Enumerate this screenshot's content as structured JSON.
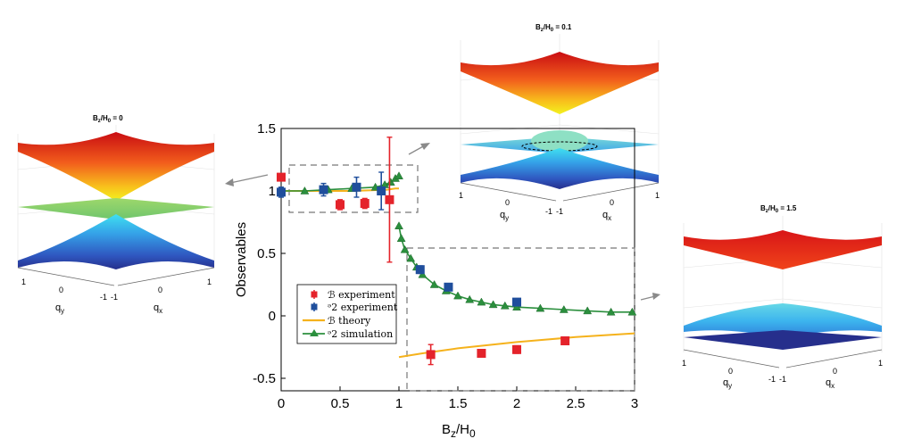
{
  "chart_data": {
    "type": "scatter",
    "xlabel": "B",
    "xlabel_sub1": "z",
    "xlabel_mid": "/H",
    "xlabel_sub2": "0",
    "ylabel": "Observables",
    "xlim": [
      0,
      3
    ],
    "ylim": [
      -0.6,
      1.5
    ],
    "x_ticks": [
      "0",
      "0.5",
      "1",
      "1.5",
      "2",
      "2.5",
      "3"
    ],
    "y_ticks": [
      "1.5",
      "1",
      "0.5",
      "0",
      "-0.5"
    ],
    "legend": [
      "ℬ experiment",
      "ᵊ2 experiment",
      "ℬ theory",
      "ᵊ2 simulation"
    ],
    "legend_position": "lower-left",
    "series": [
      {
        "name": "ℬ experiment",
        "color": "#e4232b",
        "marker": "square",
        "points": [
          [
            0,
            1.11,
            0.02
          ],
          [
            0.5,
            0.89,
            0.04
          ],
          [
            0.71,
            0.9,
            0.04
          ],
          [
            0.92,
            0.93,
            0.5
          ],
          [
            1.27,
            -0.31,
            0.08
          ],
          [
            1.7,
            -0.3,
            0.03
          ],
          [
            2.0,
            -0.27,
            0.03
          ],
          [
            2.41,
            -0.2,
            0.02
          ]
        ]
      },
      {
        "name": "ᵊ2 experiment",
        "color": "#1f4e9c",
        "marker": "square",
        "points": [
          [
            0,
            0.99,
            0.04
          ],
          [
            0.36,
            1.01,
            0.05
          ],
          [
            0.64,
            1.03,
            0.08
          ],
          [
            0.85,
            1.0,
            0.15
          ],
          [
            1.18,
            0.37,
            0.03
          ],
          [
            1.42,
            0.23,
            0.02
          ],
          [
            2.0,
            0.11,
            0.02
          ]
        ]
      },
      {
        "name": "ℬ theory",
        "color": "#f5b21c",
        "x": [
          0,
          0.3,
          0.6,
          0.9,
          0.97,
          1.0,
          1.0,
          1.2,
          1.5,
          2.0,
          2.5,
          3.0
        ],
        "y": [
          1.0,
          1.0,
          1.0,
          1.01,
          1.02,
          1.02,
          -0.33,
          -0.3,
          -0.26,
          -0.21,
          -0.17,
          -0.14
        ]
      },
      {
        "name": "ᵊ2 simulation",
        "color": "#2b8f3d",
        "marker": "triangle",
        "x": [
          0,
          0.2,
          0.4,
          0.6,
          0.8,
          0.88,
          0.93,
          0.97,
          1.0,
          1.0,
          1.02,
          1.05,
          1.1,
          1.15,
          1.2,
          1.3,
          1.4,
          1.5,
          1.6,
          1.7,
          1.8,
          1.9,
          2.0,
          2.2,
          2.4,
          2.6,
          2.8,
          2.98
        ],
        "y": [
          1.0,
          1.0,
          1.01,
          1.02,
          1.03,
          1.05,
          1.07,
          1.1,
          1.12,
          0.72,
          0.62,
          0.53,
          0.46,
          0.39,
          0.33,
          0.25,
          0.2,
          0.16,
          0.13,
          0.11,
          0.09,
          0.08,
          0.07,
          0.06,
          0.05,
          0.04,
          0.03,
          0.03
        ]
      }
    ]
  },
  "insets": {
    "left": {
      "title": "B",
      "sub1": "z",
      "mid": "/H",
      "sub2": "0",
      "value": " = 0"
    },
    "top": {
      "title": "B",
      "sub1": "z",
      "mid": "/H",
      "sub2": "0",
      "value": " = 0.1"
    },
    "right": {
      "title": "B",
      "sub1": "z",
      "mid": "/H",
      "sub2": "0",
      "value": " = 1.5"
    },
    "axis": {
      "qy": "q",
      "qy_sub": "y",
      "qx": "q",
      "qx_sub": "x",
      "t1": "1",
      "t0": "0",
      "tm": "-1",
      "tm2": "-1",
      "t0b": "0",
      "t1b": "1"
    }
  },
  "colors": {
    "red": "#e4232b",
    "blue": "#1f4e9c",
    "orange": "#f5b21c",
    "green": "#2b8f3d",
    "dash": "#777777"
  }
}
